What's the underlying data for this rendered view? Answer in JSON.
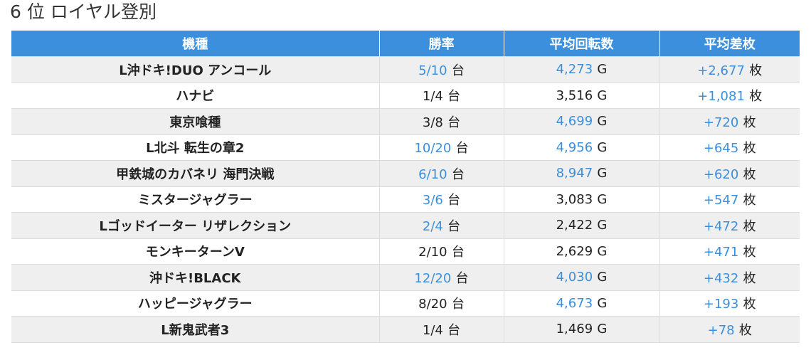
{
  "page_title": "6 位 ロイヤル登別",
  "colors": {
    "header_bg": "#3b8fdd",
    "highlight_text": "#3b8fdd",
    "row_stripe": "#efefef"
  },
  "table": {
    "headers": [
      "機種",
      "勝率",
      "平均回転数",
      "平均差枚"
    ],
    "units": {
      "rate": "台",
      "spin": "G",
      "diff": "枚"
    },
    "rows": [
      {
        "machine": "L沖ドキ!DUO アンコール",
        "rate": "5/10",
        "rate_hl": true,
        "spin": "4,273",
        "spin_hl": true,
        "diff": "+2,677",
        "diff_hl": true
      },
      {
        "machine": "ハナビ",
        "rate": "1/4",
        "rate_hl": false,
        "spin": "3,516",
        "spin_hl": false,
        "diff": "+1,081",
        "diff_hl": true
      },
      {
        "machine": "東京喰種",
        "rate": "3/8",
        "rate_hl": false,
        "spin": "4,699",
        "spin_hl": true,
        "diff": "+720",
        "diff_hl": true
      },
      {
        "machine": "L北斗 転生の章2",
        "rate": "10/20",
        "rate_hl": true,
        "spin": "4,956",
        "spin_hl": true,
        "diff": "+645",
        "diff_hl": true
      },
      {
        "machine": "甲鉄城のカバネリ 海門決戦",
        "rate": "6/10",
        "rate_hl": true,
        "spin": "8,947",
        "spin_hl": true,
        "diff": "+620",
        "diff_hl": true
      },
      {
        "machine": "ミスタージャグラー",
        "rate": "3/6",
        "rate_hl": true,
        "spin": "3,083",
        "spin_hl": false,
        "diff": "+547",
        "diff_hl": true
      },
      {
        "machine": "Lゴッドイーター リザレクション",
        "rate": "2/4",
        "rate_hl": true,
        "spin": "2,422",
        "spin_hl": false,
        "diff": "+472",
        "diff_hl": true
      },
      {
        "machine": "モンキーターンV",
        "rate": "2/10",
        "rate_hl": false,
        "spin": "2,629",
        "spin_hl": false,
        "diff": "+471",
        "diff_hl": true
      },
      {
        "machine": "沖ドキ!BLACK",
        "rate": "12/20",
        "rate_hl": true,
        "spin": "4,030",
        "spin_hl": true,
        "diff": "+432",
        "diff_hl": true
      },
      {
        "machine": "ハッピージャグラー",
        "rate": "8/20",
        "rate_hl": false,
        "spin": "4,673",
        "spin_hl": true,
        "diff": "+193",
        "diff_hl": true
      },
      {
        "machine": "L新鬼武者3",
        "rate": "1/4",
        "rate_hl": false,
        "spin": "1,469",
        "spin_hl": false,
        "diff": "+78",
        "diff_hl": true
      }
    ]
  }
}
